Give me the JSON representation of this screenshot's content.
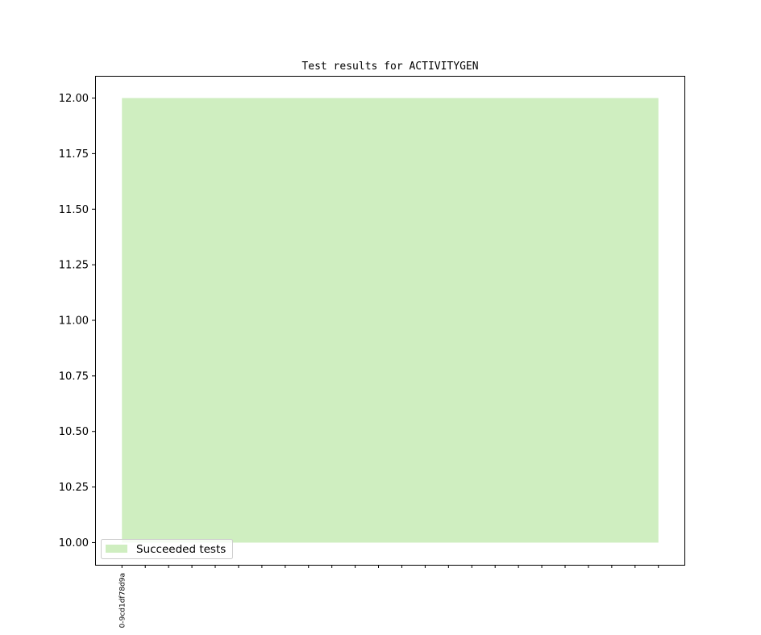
{
  "chart_data": {
    "type": "area",
    "title": "Test results for ACTIVITYGEN",
    "xlabel": "",
    "ylabel": "",
    "x": [
      0,
      1,
      2,
      3,
      4,
      5,
      6,
      7,
      8,
      9,
      10,
      11,
      12,
      13,
      14,
      15,
      16,
      17,
      18,
      19,
      20,
      21,
      22,
      23
    ],
    "x_tick_labels": [
      "0-9cd1df78d9a"
    ],
    "xlim": [
      -1.15,
      24.15
    ],
    "ylim": [
      9.9,
      12.1
    ],
    "y_ticks": [
      "10.00",
      "10.25",
      "10.50",
      "10.75",
      "11.00",
      "11.25",
      "11.50",
      "11.75",
      "12.00"
    ],
    "series": [
      {
        "name": "Succeeded tests",
        "lower": 10,
        "upper": 12,
        "color": "#cfeec0"
      }
    ],
    "legend_placement": "lower-left",
    "grid": false
  }
}
